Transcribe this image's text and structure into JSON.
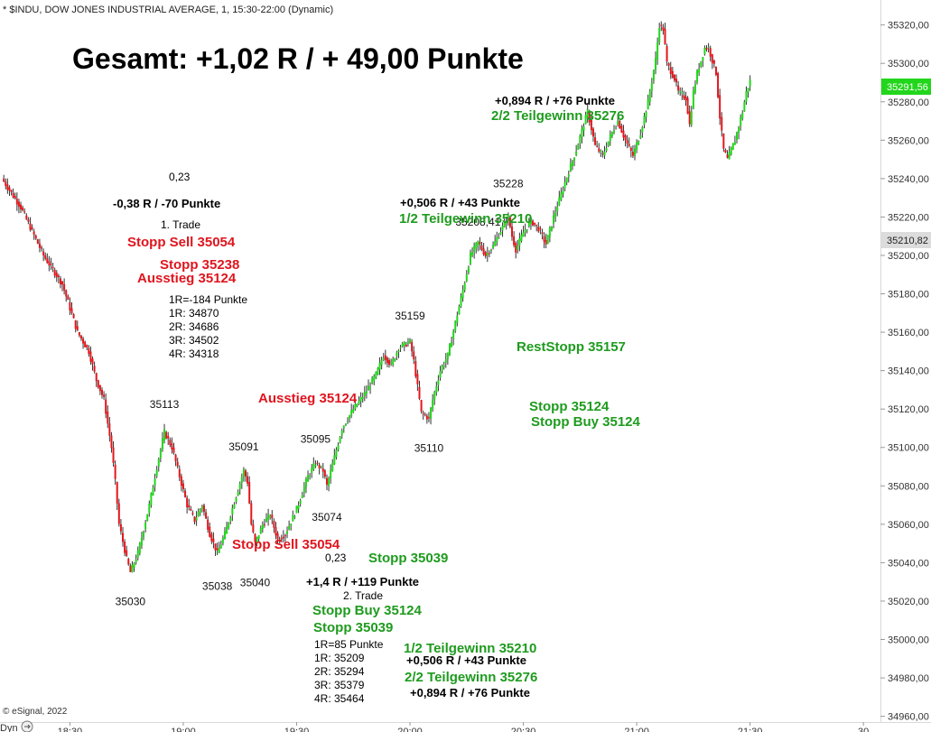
{
  "header": {
    "symbol_line": "* $INDU, DOW JONES INDUSTRIAL AVERAGE, 1, 15:30-22:00 (Dynamic)"
  },
  "footer": {
    "copyright": "© eSignal, 2022",
    "dyn_label": "Dyn"
  },
  "price_labels": {
    "last": "35291,56",
    "marker": "35210,82"
  },
  "chart_data": {
    "type": "candlestick",
    "title": "",
    "ylim": [
      34957,
      35333
    ],
    "y_ticks": [
      34960,
      34980,
      35000,
      35020,
      35040,
      35060,
      35080,
      35100,
      35120,
      35140,
      35160,
      35180,
      35200,
      35220,
      35240,
      35260,
      35280,
      35300,
      35320
    ],
    "y_tick_labels": [
      "34960,00",
      "34980,00",
      "35000,00",
      "35020,00",
      "35040,00",
      "35060,00",
      "35080,00",
      "35100,00",
      "35120,00",
      "35140,00",
      "35160,00",
      "35180,00",
      "35200,00",
      "35220,00",
      "35240,00",
      "35260,00",
      "35280,00",
      "35300,00",
      "35320,00"
    ],
    "x_ticks": [
      {
        "label": "18:30",
        "minute": 0
      },
      {
        "label": "19:00",
        "minute": 30
      },
      {
        "label": "19:30",
        "minute": 60
      },
      {
        "label": "20:00",
        "minute": 90
      },
      {
        "label": "20:30",
        "minute": 120
      },
      {
        "label": "21:00",
        "minute": 150
      },
      {
        "label": "21:30",
        "minute": 180
      },
      {
        "label": "30",
        "minute": 210
      }
    ],
    "minute_range": [
      -18.5,
      214.5
    ],
    "path": [
      [
        -18,
        35240
      ],
      [
        -13,
        35225
      ],
      [
        -7,
        35200
      ],
      [
        -2,
        35185
      ],
      [
        2,
        35160
      ],
      [
        5,
        35150
      ],
      [
        7,
        35135
      ],
      [
        9,
        35125
      ],
      [
        11,
        35100
      ],
      [
        12,
        35082
      ],
      [
        13,
        35060
      ],
      [
        15,
        35042
      ],
      [
        16,
        35035
      ],
      [
        18,
        35045
      ],
      [
        21,
        35070
      ],
      [
        23,
        35090
      ],
      [
        25,
        35108
      ],
      [
        27,
        35100
      ],
      [
        29,
        35085
      ],
      [
        31,
        35070
      ],
      [
        33,
        35062
      ],
      [
        35,
        35070
      ],
      [
        37,
        35055
      ],
      [
        39,
        35045
      ],
      [
        41,
        35055
      ],
      [
        44,
        35075
      ],
      [
        46,
        35088
      ],
      [
        47,
        35082
      ],
      [
        48,
        35060
      ],
      [
        49,
        35050
      ],
      [
        51,
        35060
      ],
      [
        53,
        35065
      ],
      [
        55,
        35052
      ],
      [
        57,
        35055
      ],
      [
        60,
        35068
      ],
      [
        63,
        35085
      ],
      [
        65,
        35092
      ],
      [
        67,
        35088
      ],
      [
        68,
        35080
      ],
      [
        70,
        35095
      ],
      [
        72,
        35110
      ],
      [
        75,
        35120
      ],
      [
        78,
        35128
      ],
      [
        81,
        35138
      ],
      [
        83,
        35148
      ],
      [
        85,
        35143
      ],
      [
        87,
        35152
      ],
      [
        90,
        35155
      ],
      [
        91,
        35145
      ],
      [
        93,
        35118
      ],
      [
        95,
        35115
      ],
      [
        96,
        35125
      ],
      [
        98,
        35140
      ],
      [
        100,
        35148
      ],
      [
        102,
        35165
      ],
      [
        104,
        35182
      ],
      [
        106,
        35200
      ],
      [
        108,
        35207
      ],
      [
        110,
        35200
      ],
      [
        112,
        35205
      ],
      [
        114,
        35213
      ],
      [
        116,
        35220
      ],
      [
        117,
        35210
      ],
      [
        118,
        35203
      ],
      [
        120,
        35212
      ],
      [
        122,
        35218
      ],
      [
        124,
        35214
      ],
      [
        126,
        35206
      ],
      [
        128,
        35220
      ],
      [
        131,
        35238
      ],
      [
        134,
        35255
      ],
      [
        137,
        35275
      ],
      [
        139,
        35257
      ],
      [
        141,
        35252
      ],
      [
        143,
        35262
      ],
      [
        145,
        35270
      ],
      [
        147,
        35260
      ],
      [
        149,
        35252
      ],
      [
        151,
        35264
      ],
      [
        153,
        35280
      ],
      [
        155,
        35302
      ],
      [
        156,
        35320
      ],
      [
        157,
        35318
      ],
      [
        158,
        35300
      ],
      [
        160,
        35292
      ],
      [
        161,
        35285
      ],
      [
        163,
        35282
      ],
      [
        164,
        35268
      ],
      [
        165,
        35285
      ],
      [
        166,
        35295
      ],
      [
        168,
        35308
      ],
      [
        169,
        35308
      ],
      [
        171,
        35295
      ],
      [
        172,
        35272
      ],
      [
        173,
        35255
      ],
      [
        174,
        35250
      ],
      [
        176,
        35260
      ],
      [
        178,
        35275
      ],
      [
        179,
        35285
      ],
      [
        180,
        35291
      ]
    ],
    "annotations": [
      {
        "id": "gesamt",
        "text": "Gesamt: +1,02 R / + 49,00 Punkte",
        "color": "#000000"
      },
      {
        "id": "t1-value",
        "text": "0,23",
        "color": "#000000"
      },
      {
        "id": "t1-result",
        "text": "-0,38 R / -70 Punkte",
        "color": "#000000"
      },
      {
        "id": "t1-title",
        "text": "1. Trade",
        "color": "#000000"
      },
      {
        "id": "t1-stopp-sell",
        "text": "Stopp Sell 35054",
        "color": "#e0141e"
      },
      {
        "id": "t1-stopp",
        "text": "Stopp 35238",
        "color": "#e0141e"
      },
      {
        "id": "t1-ausstieg",
        "text": "Ausstieg 35124",
        "color": "#e0141e"
      },
      {
        "id": "t1-r",
        "text": "1R=-184 Punkte",
        "color": "#000000"
      },
      {
        "id": "t1-r1",
        "text": "1R: 34870",
        "color": "#000000"
      },
      {
        "id": "t1-r2",
        "text": "2R: 34686",
        "color": "#000000"
      },
      {
        "id": "t1-r3",
        "text": "3R: 34502",
        "color": "#000000"
      },
      {
        "id": "t1-r4",
        "text": "4R: 34318",
        "color": "#000000"
      },
      {
        "id": "ausstieg-mid",
        "text": "Ausstieg 35124",
        "color": "#e0141e"
      },
      {
        "id": "stopp-sell-low",
        "text": "Stopp Sell 35054",
        "color": "#e0141e"
      },
      {
        "id": "stopp-low",
        "text": "Stopp 35039",
        "color": "#1e9b1e"
      },
      {
        "id": "low-value",
        "text": "0,23",
        "color": "#000000"
      },
      {
        "id": "t2-result",
        "text": "+1,4 R / +119 Punkte",
        "color": "#000000"
      },
      {
        "id": "t2-title",
        "text": "2. Trade",
        "color": "#000000"
      },
      {
        "id": "t2-stopp-buy",
        "text": "Stopp Buy 35124",
        "color": "#1e9b1e"
      },
      {
        "id": "t2-stopp",
        "text": "Stopp 35039",
        "color": "#1e9b1e"
      },
      {
        "id": "t2-r",
        "text": "1R=85 Punkte",
        "color": "#000000"
      },
      {
        "id": "t2-r1",
        "text": "1R: 35209",
        "color": "#000000"
      },
      {
        "id": "t2-r2",
        "text": "2R: 35294",
        "color": "#000000"
      },
      {
        "id": "t2-r3",
        "text": "3R: 35379",
        "color": "#000000"
      },
      {
        "id": "t2-r4",
        "text": "4R: 35464",
        "color": "#000000"
      },
      {
        "id": "tg1-bottom",
        "text": "1/2 Teilgewinn 35210",
        "color": "#1e9b1e"
      },
      {
        "id": "tg1-bottom-val",
        "text": "+0,506 R / +43 Punkte",
        "color": "#000000"
      },
      {
        "id": "tg2-bottom",
        "text": "2/2 Teilgewinn 35276",
        "color": "#1e9b1e"
      },
      {
        "id": "tg2-bottom-val",
        "text": "+0,894 R / +76 Punkte",
        "color": "#000000"
      },
      {
        "id": "tg2-top-val",
        "text": "+0,894 R / +76 Punkte",
        "color": "#000000"
      },
      {
        "id": "tg2-top",
        "text": "2/2 Teilgewinn 35276",
        "color": "#1e9b1e"
      },
      {
        "id": "tg1-top-val",
        "text": "+0,506 R / +43 Punkte",
        "color": "#000000"
      },
      {
        "id": "tg1-top",
        "text": "1/2 Teilgewinn 35210",
        "color": "#1e9b1e"
      },
      {
        "id": "reststopp",
        "text": "RestStopp 35157",
        "color": "#1e9b1e"
      },
      {
        "id": "stopp-right",
        "text": "Stopp 35124",
        "color": "#1e9b1e"
      },
      {
        "id": "stopp-buy-right",
        "text": "Stopp Buy 35124",
        "color": "#1e9b1e"
      }
    ],
    "swing_labels": [
      {
        "text": "35030",
        "minute": 16,
        "price": 35030,
        "pos": "below"
      },
      {
        "text": "35113",
        "minute": 25,
        "price": 35113,
        "pos": "above"
      },
      {
        "text": "35038",
        "minute": 39,
        "price": 35038,
        "pos": "below"
      },
      {
        "text": "35091",
        "minute": 46,
        "price": 35091,
        "pos": "above"
      },
      {
        "text": "35040",
        "minute": 49,
        "price": 35040,
        "pos": "below"
      },
      {
        "text": "35095",
        "minute": 65,
        "price": 35095,
        "pos": "above"
      },
      {
        "text": "35074",
        "minute": 68,
        "price": 35074,
        "pos": "below"
      },
      {
        "text": "35159",
        "minute": 90,
        "price": 35159,
        "pos": "above"
      },
      {
        "text": "35110",
        "minute": 95,
        "price": 35110,
        "pos": "below"
      },
      {
        "text": "35208,41",
        "minute": 108,
        "price": 35208,
        "pos": "above"
      },
      {
        "text": "35228",
        "minute": 116,
        "price": 35228,
        "pos": "above"
      }
    ],
    "colors": {
      "up": "#22d61c",
      "down": "#e4161c",
      "wick": "#333333"
    }
  }
}
